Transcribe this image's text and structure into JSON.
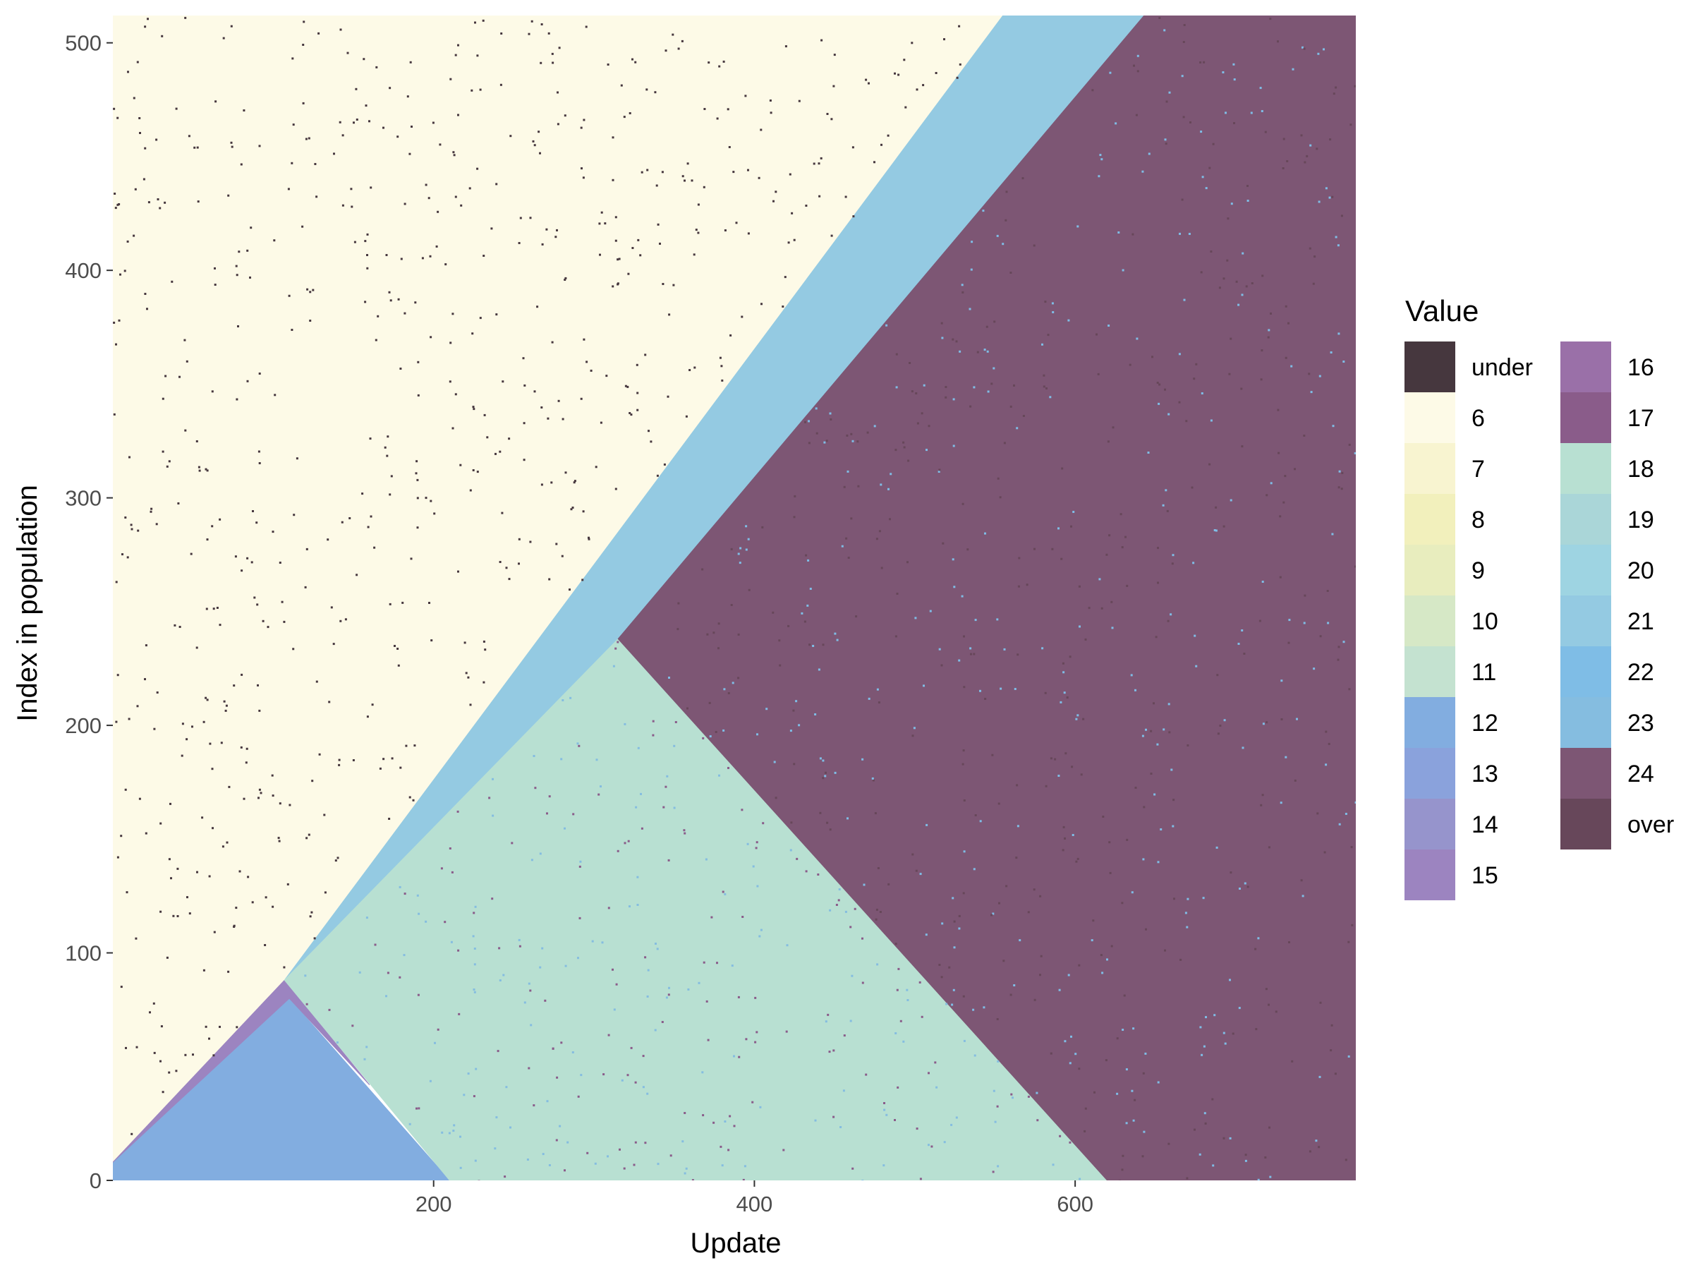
{
  "chart_data": {
    "type": "heatmap",
    "title": "",
    "xlabel": "Update",
    "ylabel": "Index in population",
    "xlim": [
      0,
      775
    ],
    "ylim": [
      0,
      512
    ],
    "x_ticks": [
      200,
      400,
      600
    ],
    "y_ticks": [
      0,
      100,
      200,
      300,
      400,
      500
    ],
    "grid": false,
    "legend": {
      "title": "Value",
      "placement": "right",
      "columns": 2,
      "entries": [
        {
          "label": "under",
          "color": "#46373e"
        },
        {
          "label": "6",
          "color": "#fdfae7"
        },
        {
          "label": "7",
          "color": "#f8f4d0"
        },
        {
          "label": "8",
          "color": "#f2f0bc"
        },
        {
          "label": "9",
          "color": "#e8edbe"
        },
        {
          "label": "10",
          "color": "#d6e8c6"
        },
        {
          "label": "11",
          "color": "#c4e2d0"
        },
        {
          "label": "12",
          "color": "#82ade0"
        },
        {
          "label": "13",
          "color": "#8aa2dc"
        },
        {
          "label": "14",
          "color": "#9694cc"
        },
        {
          "label": "15",
          "color": "#9c84c0"
        },
        {
          "label": "16",
          "color": "#9a70a8"
        },
        {
          "label": "17",
          "color": "#8a5c8a"
        },
        {
          "label": "18",
          "color": "#b8e0d2"
        },
        {
          "label": "19",
          "color": "#aad6d8"
        },
        {
          "label": "20",
          "color": "#9ed4e2"
        },
        {
          "label": "21",
          "color": "#94cae2"
        },
        {
          "label": "22",
          "color": "#7fbde6"
        },
        {
          "label": "23",
          "color": "#85bde0"
        },
        {
          "label": "24",
          "color": "#7d5674"
        },
        {
          "label": "over",
          "color": "#67475a"
        }
      ]
    },
    "regions": [
      {
        "value": "6",
        "color": "#fdfae7",
        "vertices": [
          [
            0,
            8
          ],
          [
            0,
            512
          ],
          [
            555,
            512
          ],
          [
            107,
            88
          ]
        ]
      },
      {
        "value": "12",
        "color": "#82ade0",
        "vertices": [
          [
            0,
            0
          ],
          [
            0,
            8
          ],
          [
            110,
            80
          ],
          [
            210,
            0
          ]
        ]
      },
      {
        "value": "15",
        "color": "#9c84c0",
        "vertices": [
          [
            0,
            8
          ],
          [
            107,
            88
          ],
          [
            160,
            42
          ],
          [
            110,
            80
          ]
        ]
      },
      {
        "value": "21",
        "color": "#94cae2",
        "vertices": [
          [
            107,
            88
          ],
          [
            555,
            512
          ],
          [
            643,
            512
          ],
          [
            315,
            238
          ]
        ]
      },
      {
        "value": "18",
        "color": "#b8e0d2",
        "vertices": [
          [
            107,
            88
          ],
          [
            315,
            238
          ],
          [
            620,
            0
          ],
          [
            210,
            0
          ]
        ]
      },
      {
        "value": "24",
        "color": "#7d5674",
        "vertices": [
          [
            315,
            238
          ],
          [
            643,
            512
          ],
          [
            775,
            512
          ],
          [
            775,
            0
          ],
          [
            620,
            0
          ]
        ]
      }
    ]
  }
}
